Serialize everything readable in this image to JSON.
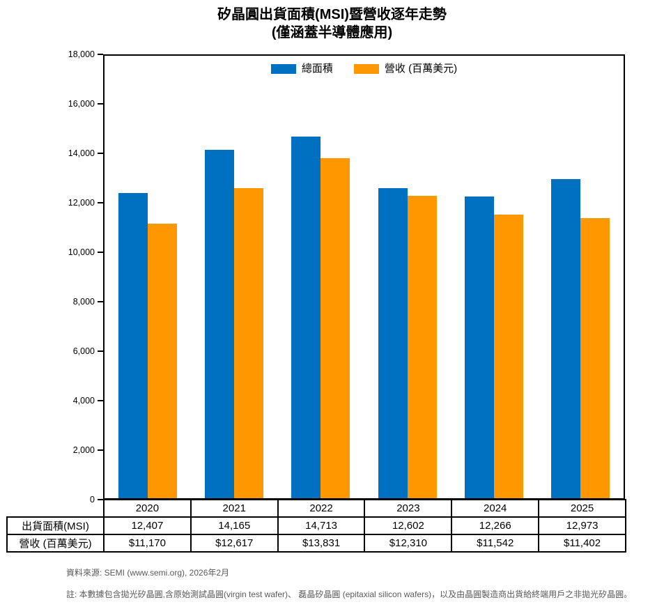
{
  "title": {
    "line1": "矽晶圓出貨面積(MSI)暨營收逐年走勢",
    "line2": "(僅涵蓋半導體應用)"
  },
  "chart_data": {
    "type": "bar",
    "title": "矽晶圓出貨面積(MSI)暨營收逐年走勢 (僅涵蓋半導體應用)",
    "categories": [
      "2020",
      "2021",
      "2022",
      "2023",
      "2024",
      "2025"
    ],
    "series": [
      {
        "name": "總面積",
        "color": "#0070C0",
        "values": [
          12407,
          14165,
          14713,
          12602,
          12266,
          12973
        ]
      },
      {
        "name": "營收 (百萬美元)",
        "color": "#FF9800",
        "values": [
          11170,
          12617,
          13831,
          12310,
          11542,
          11402
        ]
      }
    ],
    "xlabel": "",
    "ylabel": "",
    "ylim": [
      0,
      18000
    ],
    "ytick_step": 2000,
    "grid": false,
    "legend_position": "top-center"
  },
  "table": {
    "years": [
      "2020",
      "2021",
      "2022",
      "2023",
      "2024",
      "2025"
    ],
    "rows": [
      {
        "label": "出貨面積(MSI)",
        "values": [
          "12,407",
          "14,165",
          "14,713",
          "12,602",
          "12,266",
          "12,973"
        ]
      },
      {
        "label": "營收 (百萬美元)",
        "values": [
          "$11,170",
          "$12,617",
          "$13,831",
          "$12,310",
          "$11,542",
          "$11,402"
        ]
      }
    ]
  },
  "footer": {
    "source": "資料來源: SEMI (www.semi.org), 2026年2月",
    "note": "註: 本數據包含拋光矽晶圓,含原始測試晶圓(virgin test wafer)、 磊晶矽晶圓 (epitaxial silicon wafers)，以及由晶圓製造商出貨給終端用戶之非拋光矽晶圓。"
  }
}
